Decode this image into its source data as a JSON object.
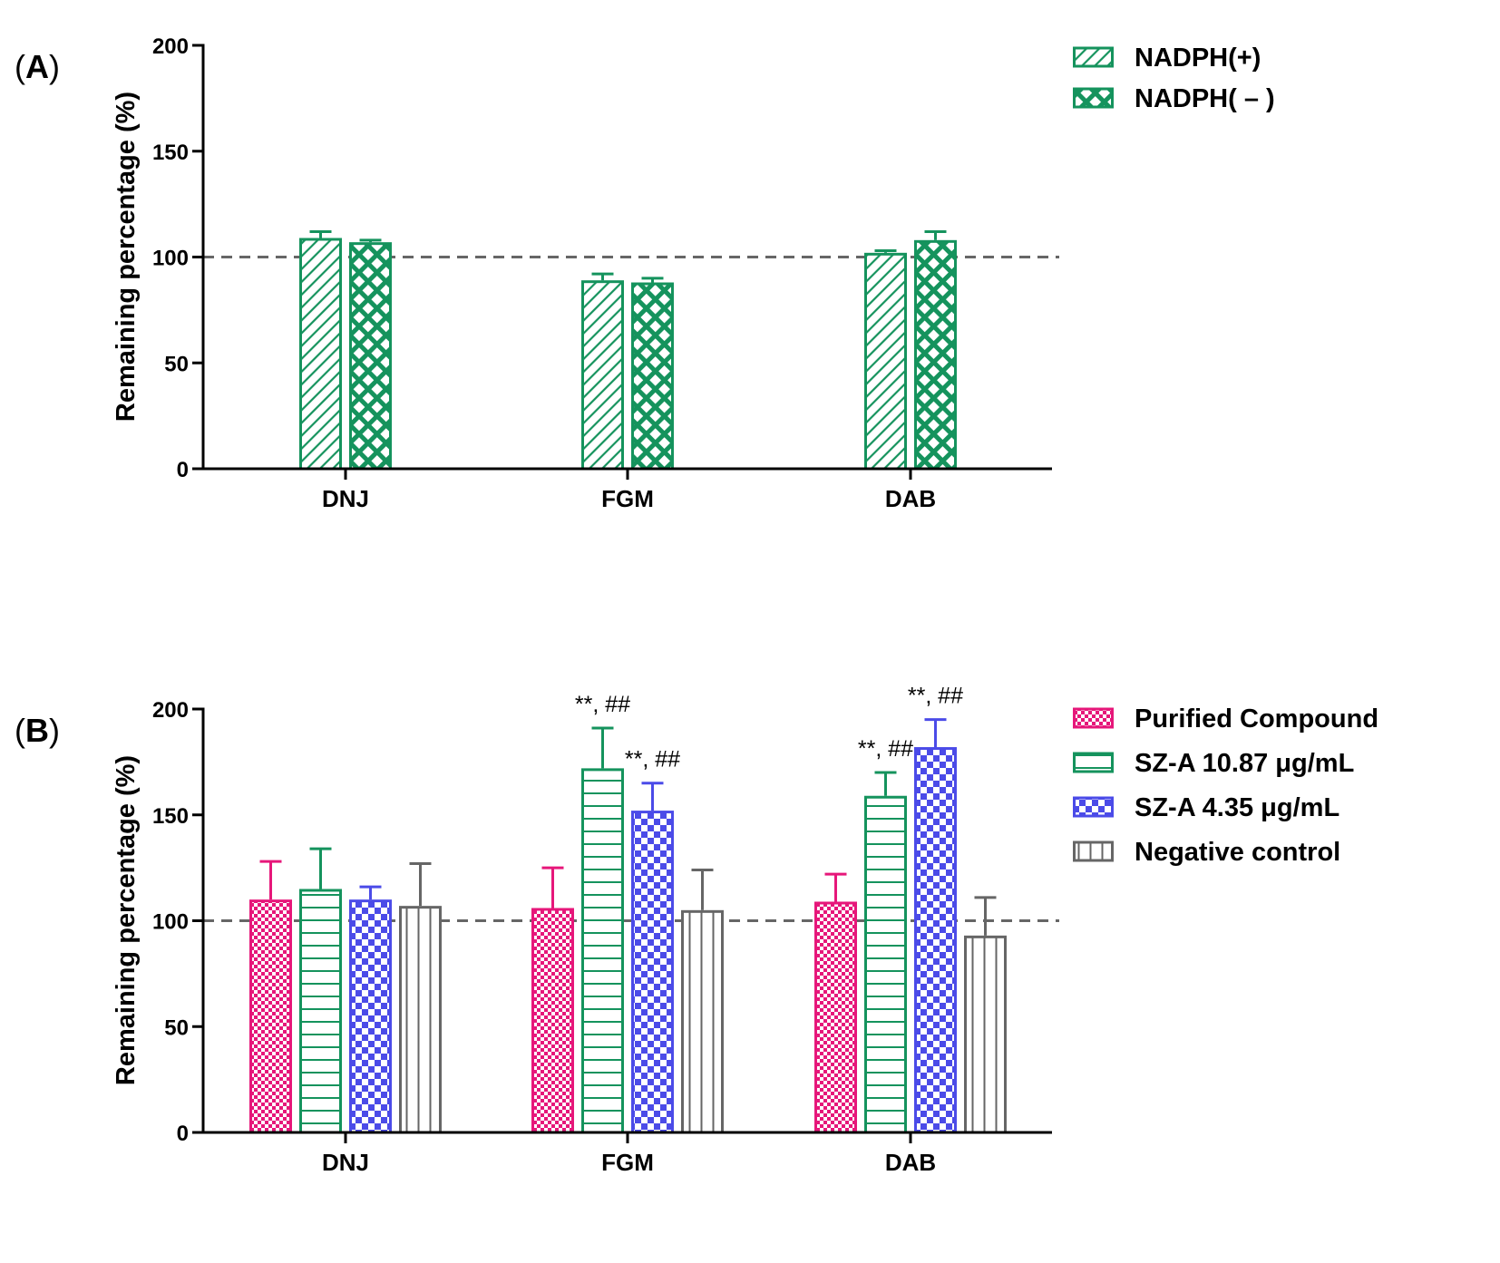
{
  "chart_data": [
    {
      "panel_label": "A",
      "type": "bar",
      "title": "",
      "xlabel": "",
      "ylabel": "Remaining percentage (%)",
      "ylim": [
        0,
        200
      ],
      "yticks": [
        "0",
        "50",
        "100",
        "150",
        "200"
      ],
      "categories": [
        "DNJ",
        "FGM",
        "DAB"
      ],
      "reference_line": 100,
      "series": [
        {
          "name": "NADPH(+)",
          "values": [
            109,
            89,
            102
          ],
          "errors": [
            3,
            3,
            1
          ],
          "color": "#15935d",
          "pattern": "diag-hatch"
        },
        {
          "name": "NADPH( – )",
          "values": [
            107,
            88,
            108
          ],
          "errors": [
            1,
            2,
            4
          ],
          "color": "#15935d",
          "pattern": "crosshatch"
        }
      ],
      "annotations": []
    },
    {
      "panel_label": "B",
      "type": "bar",
      "title": "",
      "xlabel": "",
      "ylabel": "Remaining percentage (%)",
      "ylim": [
        0,
        200
      ],
      "yticks": [
        "0",
        "50",
        "100",
        "150",
        "200"
      ],
      "categories": [
        "DNJ",
        "FGM",
        "DAB"
      ],
      "reference_line": 100,
      "series": [
        {
          "name": "Purified Compound",
          "values": [
            110,
            106,
            109
          ],
          "errors": [
            18,
            19,
            13
          ],
          "color": "#e6177a",
          "pattern": "checker-fine"
        },
        {
          "name": "SZ-A 10.87 μg/mL",
          "values": [
            115,
            172,
            159
          ],
          "errors": [
            19,
            19,
            11
          ],
          "color": "#15935d",
          "pattern": "horizontal"
        },
        {
          "name": "SZ-A 4.35 μg/mL",
          "values": [
            110,
            152,
            182
          ],
          "errors": [
            6,
            13,
            13
          ],
          "color": "#4b4be8",
          "pattern": "checker"
        },
        {
          "name": "Negative control",
          "values": [
            107,
            105,
            93
          ],
          "errors": [
            20,
            19,
            18
          ],
          "color": "#666666",
          "pattern": "vertical"
        }
      ],
      "annotations": [
        {
          "category": "FGM",
          "series": "SZ-A 10.87 μg/mL",
          "text": "**, ##"
        },
        {
          "category": "FGM",
          "series": "SZ-A 4.35 μg/mL",
          "text": "**, ##"
        },
        {
          "category": "DAB",
          "series": "SZ-A 10.87 μg/mL",
          "text": "**, ##"
        },
        {
          "category": "DAB",
          "series": "SZ-A 4.35 μg/mL",
          "text": "**, ##"
        }
      ]
    }
  ]
}
